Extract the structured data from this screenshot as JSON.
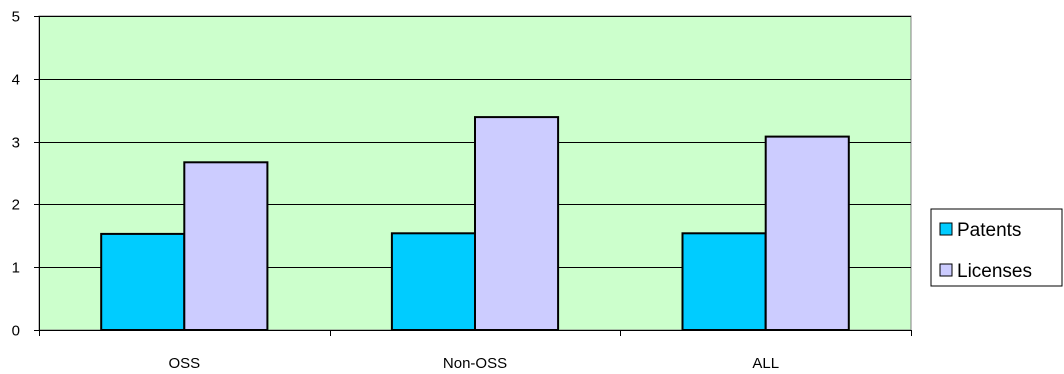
{
  "chart_data": {
    "type": "bar",
    "categories": [
      "OSS",
      "Non-OSS",
      "ALL"
    ],
    "series": [
      {
        "name": "Patents",
        "values": [
          1.53,
          1.54,
          1.54
        ],
        "color": "#00ccff"
      },
      {
        "name": "Licenses",
        "values": [
          2.67,
          3.39,
          3.08
        ],
        "color": "#ccccff"
      }
    ],
    "y_ticks": [
      "0",
      "1",
      "2",
      "3",
      "4",
      "5"
    ],
    "ylim": [
      0,
      5
    ],
    "grid": true,
    "legend_placement": "right",
    "plot_background": "#ccffcc"
  }
}
